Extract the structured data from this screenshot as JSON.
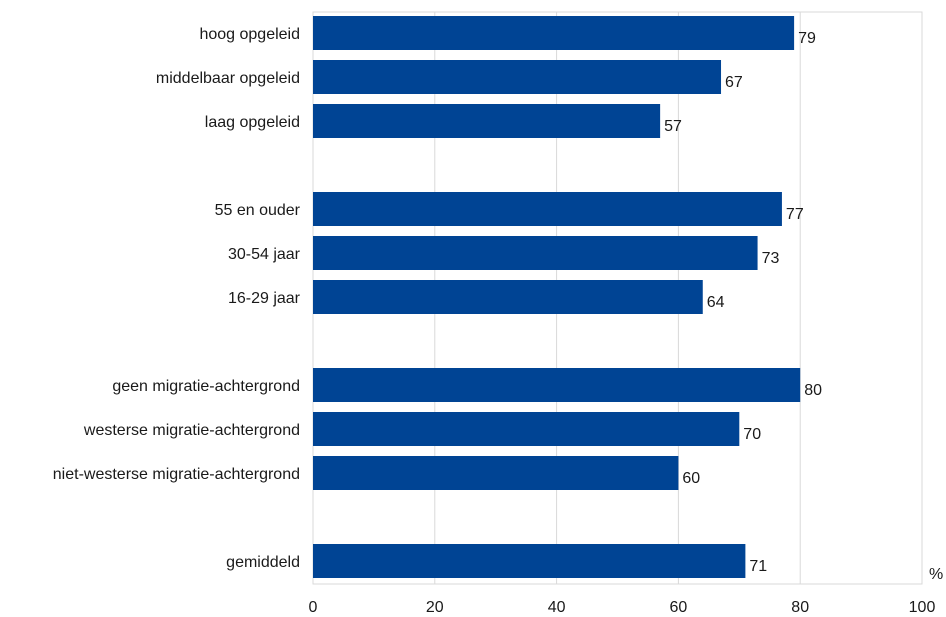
{
  "chart_data": {
    "type": "bar",
    "orientation": "horizontal",
    "categories": [
      "hoog opgeleid",
      "middelbaar opgeleid",
      "laag opgeleid",
      "",
      "55 en ouder",
      "30-54 jaar",
      "16-29 jaar",
      "",
      "geen migratie-achtergrond",
      "westerse migratie-achtergrond",
      "niet-westerse migratie-achtergrond",
      "",
      "gemiddeld"
    ],
    "values": [
      79,
      67,
      57,
      null,
      77,
      73,
      64,
      null,
      80,
      70,
      60,
      null,
      71
    ],
    "data_labels": [
      "79",
      "67",
      "57",
      "",
      "77",
      "73",
      "64",
      "",
      "80",
      "70",
      "60",
      "",
      "71"
    ],
    "xlim": [
      0,
      100
    ],
    "xticks": [
      "0",
      "20",
      "40",
      "60",
      "80",
      "100"
    ],
    "unit": "%",
    "grid": true,
    "bar_color": "#004494",
    "grid_color": "#d9d9d9"
  }
}
